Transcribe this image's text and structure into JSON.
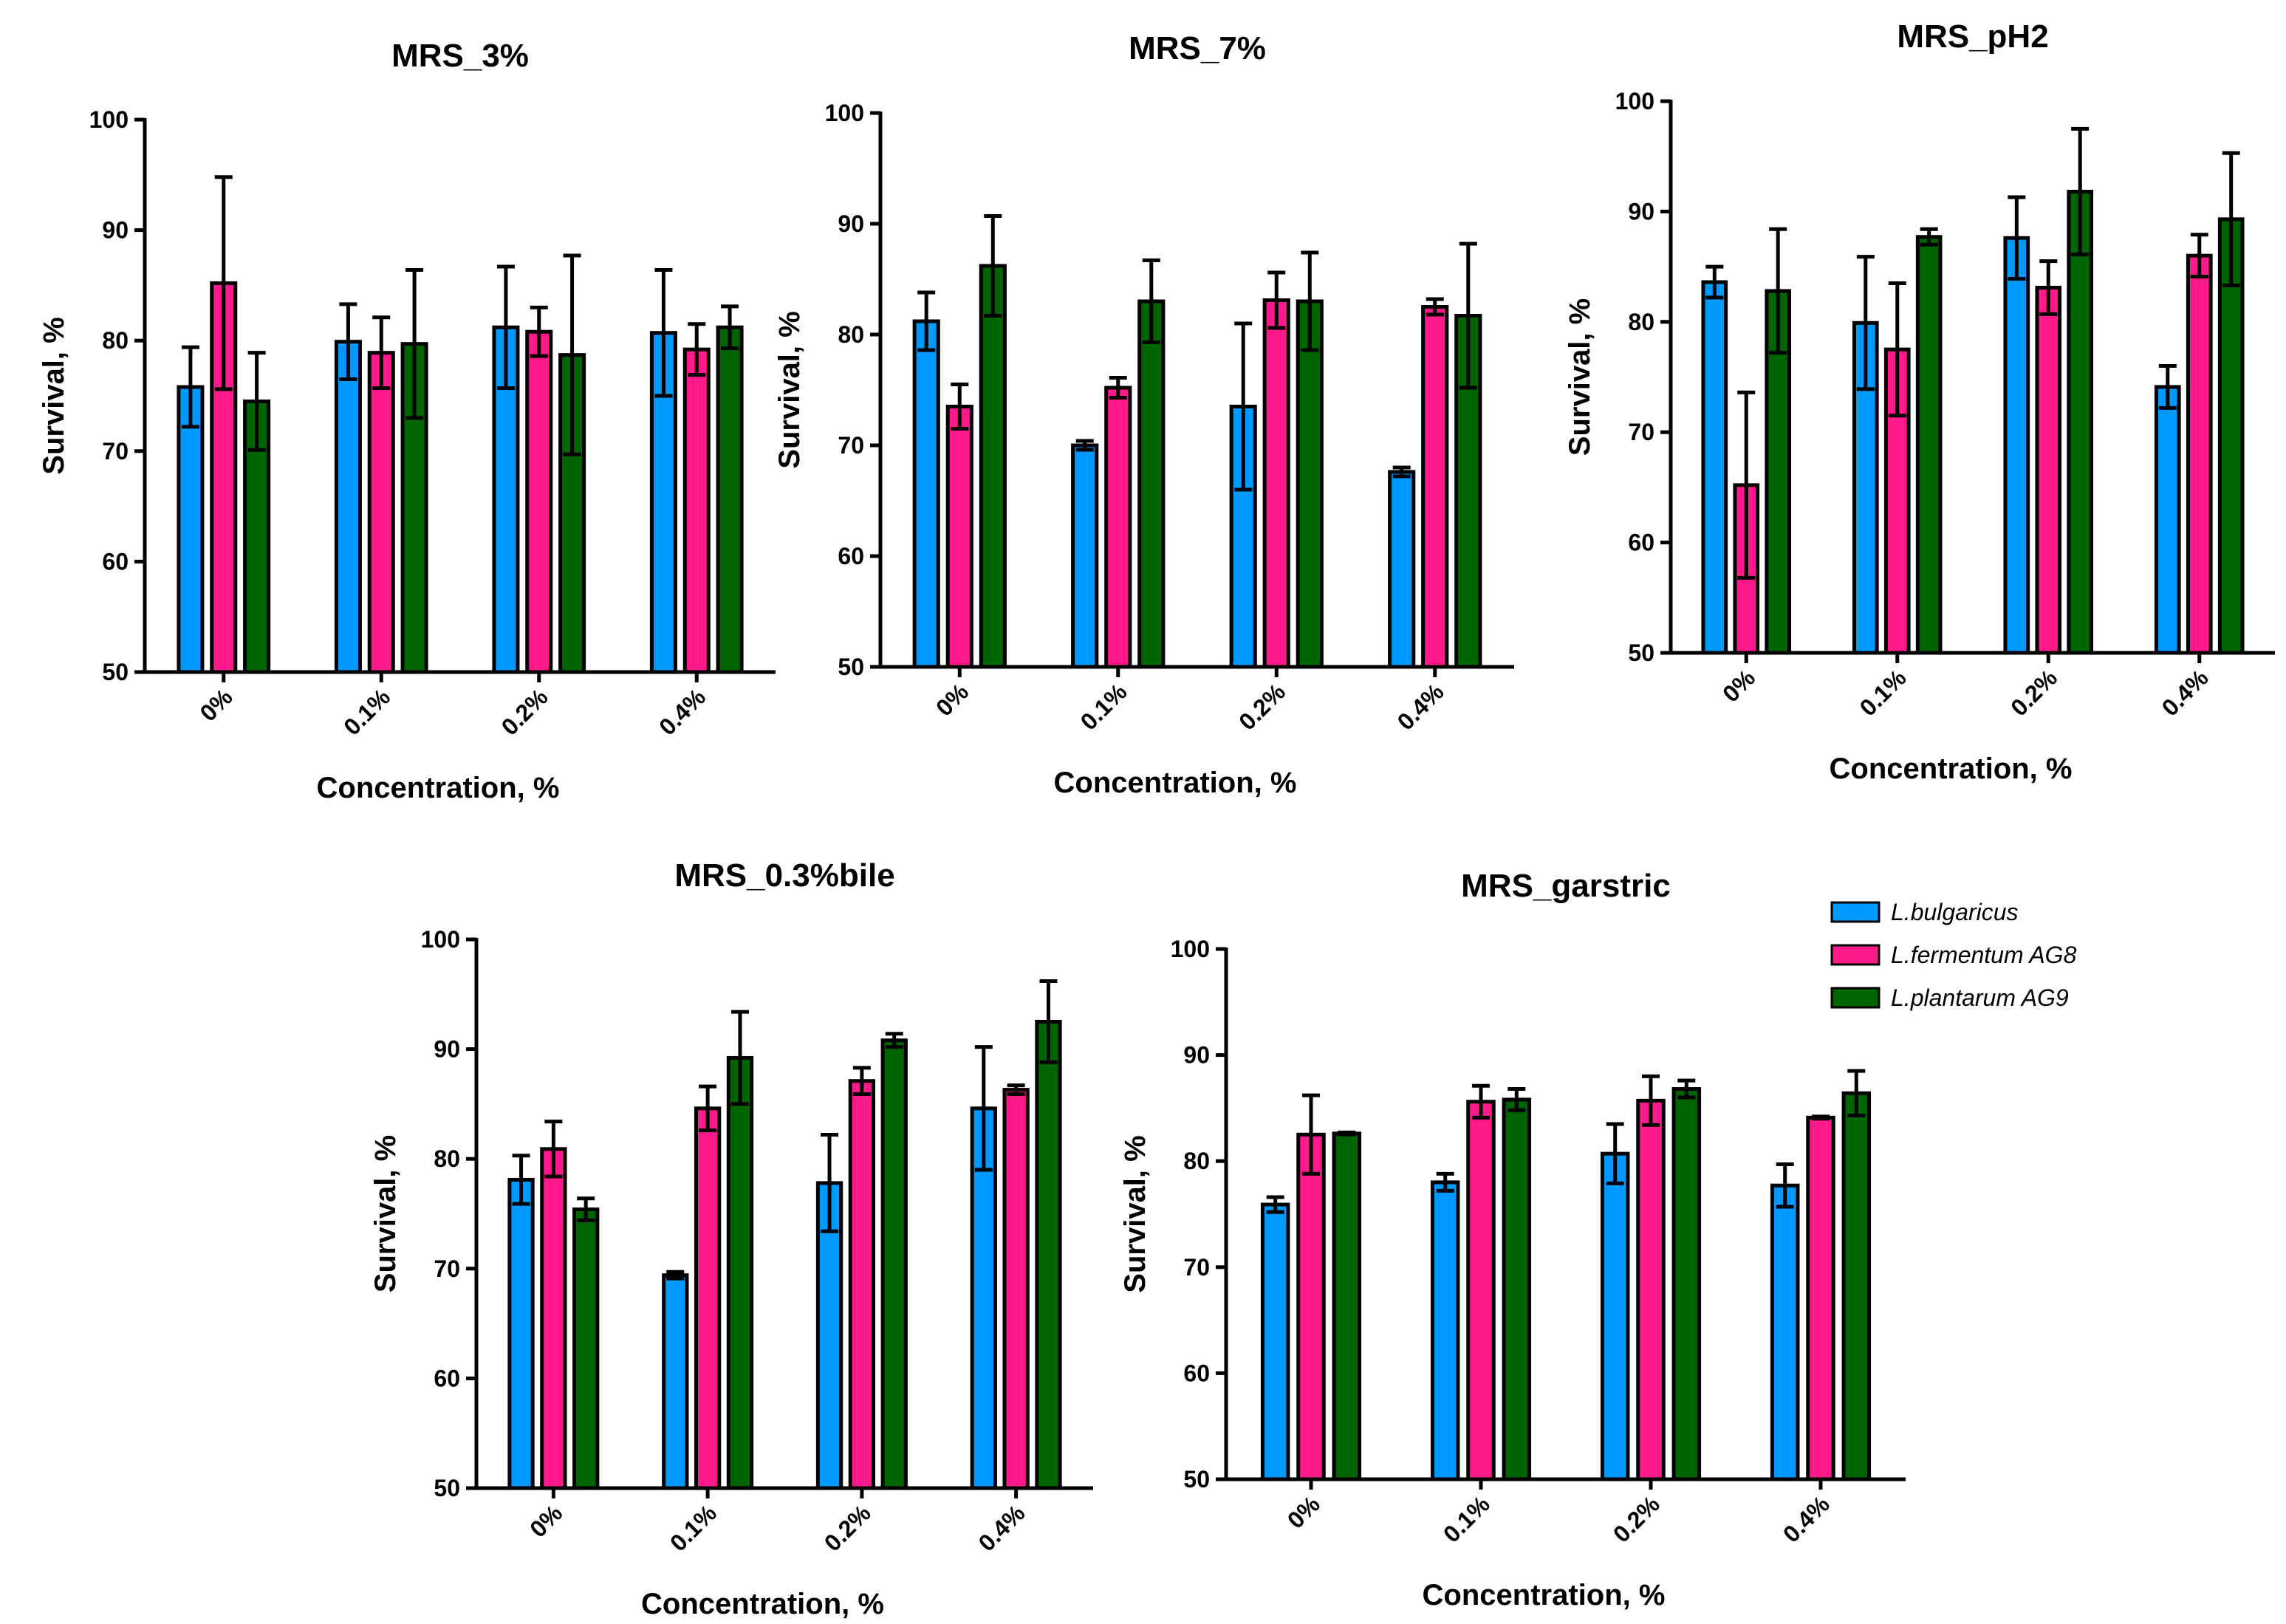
{
  "series_colors": {
    "L.bulgaricus": "#0099ff",
    "L.fermentum AG8": "#ff1a8c",
    "L.plantarum AG9": "#006400"
  },
  "legend": {
    "items": [
      {
        "name": "L.bulgaricus",
        "color": "#0099ff"
      },
      {
        "name": "L.fermentum AG8",
        "color": "#ff1a8c"
      },
      {
        "name": "L.plantarum AG9",
        "color": "#006400"
      }
    ]
  },
  "chart_data": [
    {
      "id": "mrs-3",
      "type": "bar",
      "title": "MRS_3%",
      "xlabel": "Concentration, %",
      "ylabel": "Survival, %",
      "ylim": [
        50,
        100
      ],
      "yticks": [
        50,
        60,
        70,
        80,
        90,
        100
      ],
      "categories": [
        "0%",
        "0.1%",
        "0.2%",
        "0.4%"
      ],
      "series": [
        {
          "name": "L.bulgaricus",
          "values": [
            75.8,
            79.9,
            81.2,
            80.7
          ],
          "errors": [
            3.6,
            3.4,
            5.5,
            5.7
          ]
        },
        {
          "name": "L.fermentum AG8",
          "values": [
            85.2,
            78.9,
            80.8,
            79.2
          ],
          "errors": [
            9.6,
            3.2,
            2.2,
            2.3
          ]
        },
        {
          "name": "L.plantarum AG9",
          "values": [
            74.5,
            79.7,
            78.7,
            81.2
          ],
          "errors": [
            4.4,
            6.7,
            9.0,
            1.9
          ]
        }
      ]
    },
    {
      "id": "mrs-7",
      "type": "bar",
      "title": "MRS_7%",
      "xlabel": "Concentration, %",
      "ylabel": "Survival, %",
      "ylim": [
        50,
        100
      ],
      "yticks": [
        50,
        60,
        70,
        80,
        90,
        100
      ],
      "categories": [
        "0%",
        "0.1%",
        "0.2%",
        "0.4%"
      ],
      "series": [
        {
          "name": "L.bulgaricus",
          "values": [
            81.2,
            70.0,
            73.5,
            67.6
          ],
          "errors": [
            2.6,
            0.4,
            7.5,
            0.4
          ]
        },
        {
          "name": "L.fermentum AG8",
          "values": [
            73.5,
            75.2,
            83.1,
            82.5
          ],
          "errors": [
            2.0,
            0.9,
            2.5,
            0.7
          ]
        },
        {
          "name": "L.plantarum AG9",
          "values": [
            86.2,
            83.0,
            83.0,
            81.7
          ],
          "errors": [
            4.5,
            3.7,
            4.4,
            6.5
          ]
        }
      ]
    },
    {
      "id": "mrs-ph2",
      "type": "bar",
      "title": "MRS_pH2",
      "xlabel": "Concentration, %",
      "ylabel": "Survival, %",
      "ylim": [
        50,
        100
      ],
      "yticks": [
        50,
        60,
        70,
        80,
        90,
        100
      ],
      "categories": [
        "0%",
        "0.1%",
        "0.2%",
        "0.4%"
      ],
      "series": [
        {
          "name": "L.bulgaricus",
          "values": [
            83.6,
            79.9,
            87.6,
            74.1
          ],
          "errors": [
            1.4,
            6.0,
            3.7,
            1.9
          ]
        },
        {
          "name": "L.fermentum AG8",
          "values": [
            65.2,
            77.5,
            83.1,
            86.0
          ],
          "errors": [
            8.4,
            6.0,
            2.4,
            1.9
          ]
        },
        {
          "name": "L.plantarum AG9",
          "values": [
            82.8,
            87.7,
            91.8,
            89.3
          ],
          "errors": [
            5.6,
            0.7,
            5.7,
            6.0
          ]
        }
      ]
    },
    {
      "id": "mrs-bile",
      "type": "bar",
      "title": "MRS_0.3%bile",
      "xlabel": "Concentration, %",
      "ylabel": "Survival, %",
      "ylim": [
        50,
        100
      ],
      "yticks": [
        50,
        60,
        70,
        80,
        90,
        100
      ],
      "categories": [
        "0%",
        "0.1%",
        "0.2%",
        "0.4%"
      ],
      "series": [
        {
          "name": "L.bulgaricus",
          "values": [
            78.1,
            69.4,
            77.8,
            84.6
          ],
          "errors": [
            2.2,
            0.3,
            4.4,
            5.6
          ]
        },
        {
          "name": "L.fermentum AG8",
          "values": [
            80.9,
            84.6,
            87.1,
            86.3
          ],
          "errors": [
            2.5,
            2.0,
            1.2,
            0.4
          ]
        },
        {
          "name": "L.plantarum AG9",
          "values": [
            75.4,
            89.2,
            90.8,
            92.5
          ],
          "errors": [
            1.0,
            4.2,
            0.6,
            3.7
          ]
        }
      ]
    },
    {
      "id": "mrs-gastric",
      "type": "bar",
      "title": "MRS_garstric",
      "xlabel": "Concentration, %",
      "ylabel": "Survival, %",
      "ylim": [
        50,
        100
      ],
      "yticks": [
        50,
        60,
        70,
        80,
        90,
        100
      ],
      "categories": [
        "0%",
        "0.1%",
        "0.2%",
        "0.4%"
      ],
      "series": [
        {
          "name": "L.bulgaricus",
          "values": [
            75.9,
            78.0,
            80.7,
            77.7
          ],
          "errors": [
            0.7,
            0.8,
            2.8,
            2.0
          ]
        },
        {
          "name": "L.fermentum AG8",
          "values": [
            82.5,
            85.6,
            85.7,
            84.1
          ],
          "errors": [
            3.7,
            1.5,
            2.3,
            0.1
          ]
        },
        {
          "name": "L.plantarum AG9",
          "values": [
            82.6,
            85.8,
            86.8,
            86.4
          ],
          "errors": [
            0.1,
            1.0,
            0.8,
            2.1
          ]
        }
      ]
    }
  ]
}
